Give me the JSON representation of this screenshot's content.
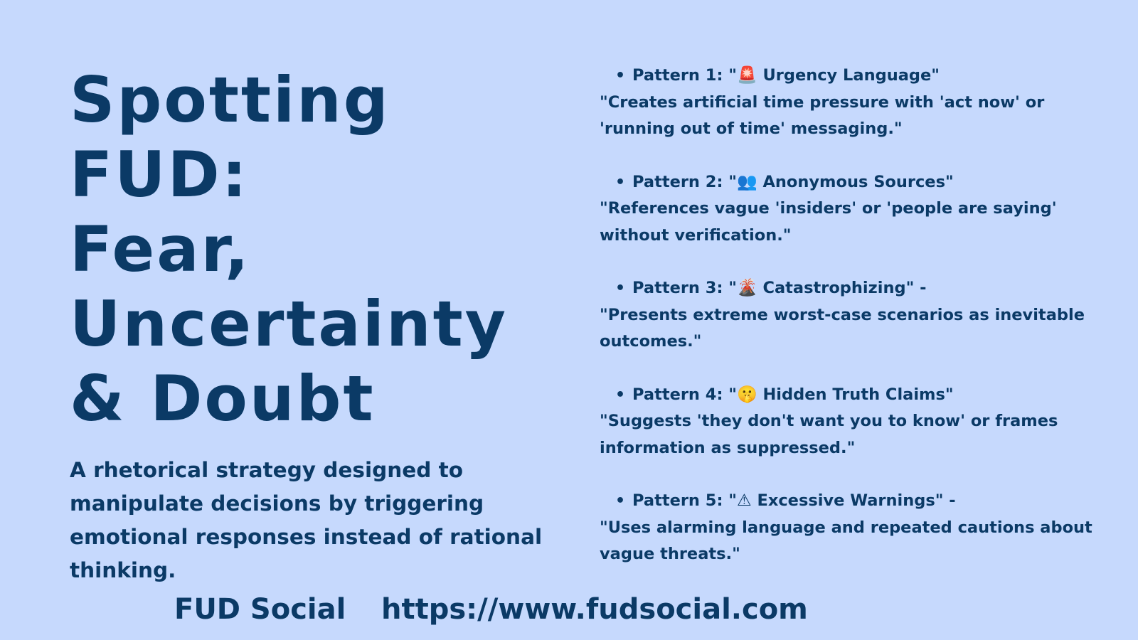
{
  "title_lines": [
    "Spotting",
    "FUD:",
    "Fear,",
    "Uncertainty",
    "& Doubt"
  ],
  "description": "A rhetorical strategy designed to manipulate decisions by triggering emotional responses instead of rational thinking.",
  "patterns": [
    {
      "bullet": "•",
      "prefix": "Pattern 1: \"",
      "emoji": "🚨",
      "suffix": " Urgency Language\"",
      "description": "\"Creates artificial time pressure with 'act now' or 'running out of time' messaging.\""
    },
    {
      "bullet": "•",
      "prefix": "Pattern 2: \"",
      "emoji": "👥",
      "suffix": " Anonymous Sources\"",
      "description": "\"References vague 'insiders' or 'people are saying' without verification.\""
    },
    {
      "bullet": "•",
      "prefix": "Pattern 3: \"",
      "emoji": "🌋",
      "suffix": " Catastrophizing\" -",
      "description": "\"Presents extreme worst-case scenarios as inevitable outcomes.\""
    },
    {
      "bullet": "•",
      "prefix": "Pattern 4: \"",
      "emoji": "🤫",
      "suffix": " Hidden Truth Claims\"",
      "description": "\"Suggests 'they don't want you to know' or frames information as suppressed.\""
    },
    {
      "bullet": "•",
      "prefix": "Pattern 5: \"",
      "emoji": "⚠",
      "suffix": " Excessive Warnings\" -",
      "description": " \"Uses alarming language and repeated cautions about vague threats.\""
    }
  ],
  "footer": {
    "brand": "FUD Social",
    "url": "https://www.fudsocial.com"
  },
  "colors": {
    "background": "#c6d9fd",
    "text": "#0b3a66"
  }
}
